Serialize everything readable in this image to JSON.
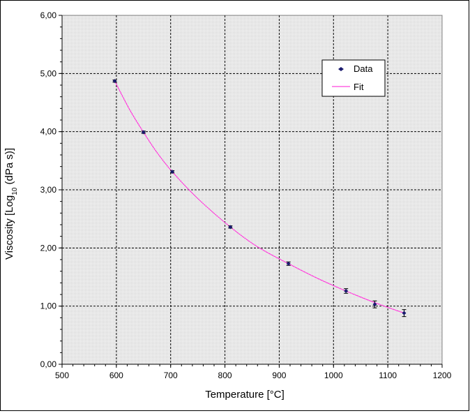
{
  "chart_data": {
    "type": "scatter",
    "xlabel": "Temperature [°C]",
    "ylabel_parts": {
      "prefix": "Viscosity [Log",
      "subscript": "10",
      "suffix": " (dPa s)]"
    },
    "xlim": [
      500,
      1200
    ],
    "ylim": [
      0,
      6
    ],
    "x_major_step": 100,
    "y_major_step": 1,
    "x_tick_labels": [
      "500",
      "600",
      "700",
      "800",
      "900",
      "1000",
      "1100",
      "1200"
    ],
    "y_tick_labels": [
      "0,00",
      "1,00",
      "2,00",
      "3,00",
      "4,00",
      "5,00",
      "6,00"
    ],
    "grid": true,
    "legend_position": "top-right",
    "colors": {
      "data": "#1a1a6e",
      "fit": "#ff44dd",
      "grid": "#000000"
    },
    "series": [
      {
        "name": "Data",
        "kind": "markers",
        "x": [
          597,
          650,
          703,
          810,
          917,
          1023,
          1076,
          1130
        ],
        "y": [
          4.87,
          3.99,
          3.31,
          2.36,
          1.73,
          1.26,
          1.03,
          0.88
        ],
        "err": [
          0.02,
          0.02,
          0.02,
          0.02,
          0.03,
          0.04,
          0.06,
          0.06
        ]
      },
      {
        "name": "Fit",
        "kind": "line",
        "x": [
          597,
          625,
          650,
          675,
          703,
          750,
          810,
          860,
          917,
          970,
          1023,
          1076,
          1130
        ],
        "y": [
          4.87,
          4.37,
          3.99,
          3.64,
          3.31,
          2.85,
          2.36,
          2.02,
          1.73,
          1.48,
          1.26,
          1.06,
          0.88
        ]
      }
    ]
  }
}
